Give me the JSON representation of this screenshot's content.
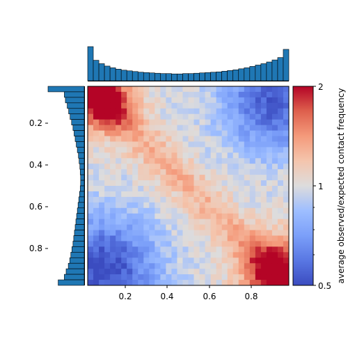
{
  "chart_data": {
    "type": "heatmap",
    "title": "",
    "grid": false,
    "heatmap": {
      "x_range": [
        0.02,
        0.98
      ],
      "y_range": [
        0.02,
        0.98
      ],
      "y_axis_inverted": true,
      "rows": 36,
      "cols": 36,
      "value_model": "log2 ratio = 0.55*(u - 0.5)^2*... (see script)",
      "x_ticks": [
        "0.2",
        "0.4",
        "0.6",
        "0.8"
      ],
      "y_ticks": [
        "0.2",
        "0.4",
        "0.6",
        "0.8"
      ]
    },
    "colorbar": {
      "label": "average observed/expected contact frequency",
      "scale": "log",
      "range": [
        0.5,
        2
      ],
      "tick_labels": [
        "2",
        "1",
        "0.5"
      ],
      "colormap": "coolwarm"
    },
    "top_histogram": {
      "orientation": "vertical",
      "bins": 36,
      "heights": [
        1.0,
        0.6,
        0.5,
        0.43,
        0.38,
        0.34,
        0.31,
        0.29,
        0.27,
        0.25,
        0.24,
        0.23,
        0.22,
        0.21,
        0.21,
        0.2,
        0.2,
        0.21,
        0.21,
        0.22,
        0.23,
        0.24,
        0.25,
        0.26,
        0.28,
        0.3,
        0.32,
        0.35,
        0.38,
        0.42,
        0.46,
        0.5,
        0.55,
        0.61,
        0.68,
        0.92
      ],
      "color": "#1f77b4"
    },
    "left_histogram": {
      "orientation": "horizontal",
      "bins": 36,
      "widths": [
        1.0,
        0.55,
        0.52,
        0.47,
        0.43,
        0.39,
        0.35,
        0.31,
        0.28,
        0.25,
        0.22,
        0.19,
        0.16,
        0.14,
        0.12,
        0.11,
        0.1,
        0.1,
        0.11,
        0.13,
        0.15,
        0.17,
        0.19,
        0.21,
        0.23,
        0.25,
        0.27,
        0.29,
        0.31,
        0.34,
        0.37,
        0.4,
        0.44,
        0.5,
        0.55,
        0.72
      ],
      "color": "#1f77b4"
    }
  }
}
